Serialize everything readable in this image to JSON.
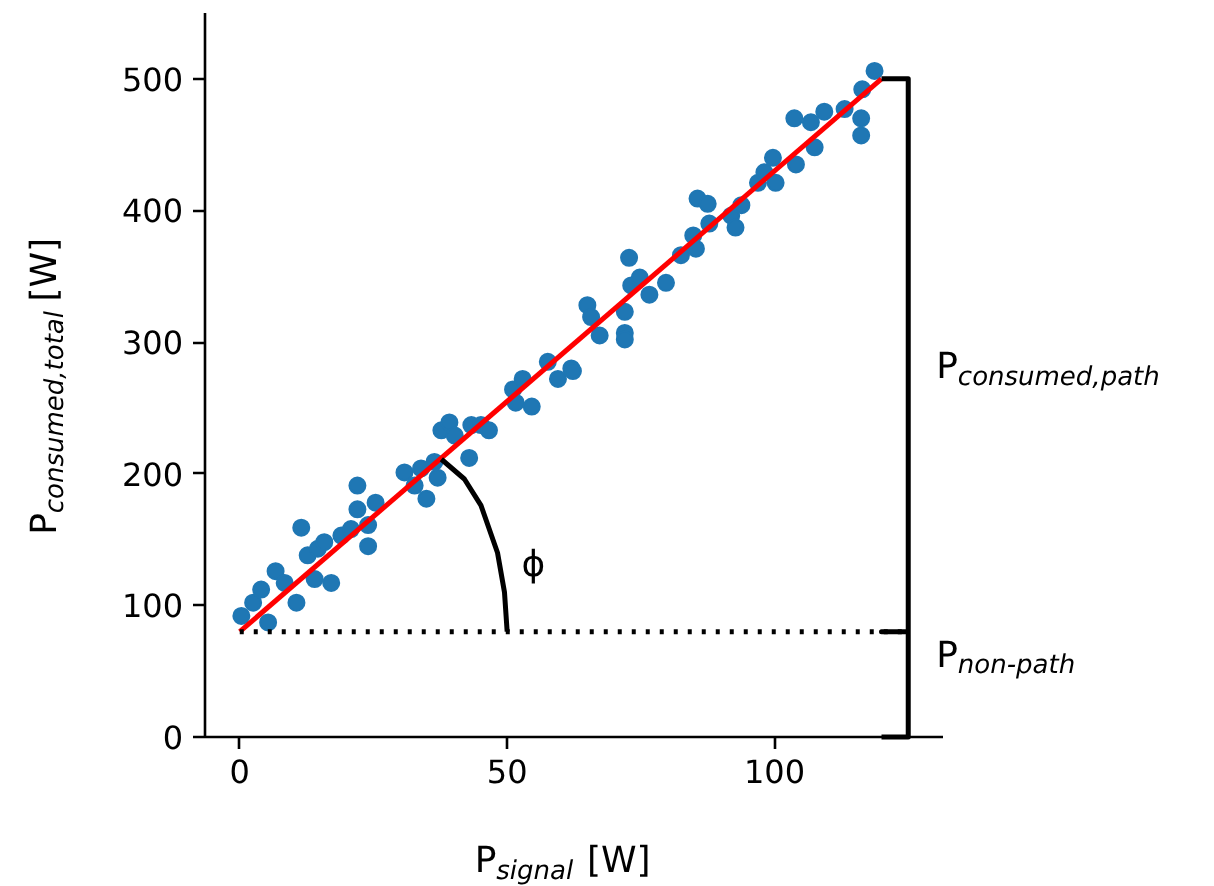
{
  "chart_data": {
    "type": "scatter",
    "xlabel": "P$_{signal}$ [W]",
    "ylabel": "P$_{consumed,total}$ [W]",
    "xlim": [
      -6.5,
      131.5
    ],
    "ylim": [
      0,
      550
    ],
    "xticks": [
      0,
      50,
      100
    ],
    "yticks": [
      0,
      100,
      200,
      300,
      400,
      500
    ],
    "grid": false,
    "marker": "circle",
    "series": [
      {
        "color": "#1f77b4",
        "x": [
          0.3,
          2.5,
          5.3,
          4,
          6.7,
          8.4,
          10.6,
          11.5,
          12.7,
          14.6,
          17.1,
          14,
          15.8,
          19,
          20.8,
          22,
          22,
          24,
          24,
          25.4,
          30.8,
          32.7,
          34.9,
          33.9,
          36.4,
          37,
          37.7,
          39.2,
          40.2,
          42.9,
          43.3,
          45.1,
          46.6,
          51.1,
          51.6,
          54.6,
          52.9,
          57.6,
          59.5,
          62,
          62.3,
          65,
          65.7,
          67.3,
          72,
          72,
          72,
          72.8,
          73.2,
          74.8,
          76.6,
          79.7,
          82.5,
          84.8,
          85.3,
          85.6,
          87.5,
          87.8,
          91.9,
          92.7,
          93.8,
          96.9,
          98.1,
          99.7,
          100.2,
          104,
          103.7,
          107.5,
          106.8,
          116.2,
          116.2,
          109.3,
          113.1,
          116.4,
          118.7
        ],
        "values": [
          92,
          102,
          87,
          112,
          126,
          117,
          102,
          159,
          138,
          143,
          117,
          120,
          148,
          153,
          158,
          191,
          173,
          161,
          145,
          178,
          201,
          191,
          181,
          204,
          209,
          197,
          233,
          239,
          229,
          212,
          237,
          237,
          233,
          264,
          254,
          251,
          272,
          285,
          272,
          280,
          278,
          328,
          319,
          305,
          323,
          307,
          302,
          364,
          343,
          349,
          336,
          345,
          366,
          381,
          371,
          409,
          405,
          390,
          396,
          387,
          404,
          421,
          429,
          440,
          421,
          435,
          470,
          448,
          467,
          457,
          470,
          475,
          477,
          492,
          506
        ]
      },
      {
        "type": "line",
        "marker": "none",
        "color": "#ff0000",
        "x": [
          0,
          120
        ],
        "values": [
          80,
          500
        ]
      },
      {
        "type": "line",
        "marker": "none",
        "color": "#000000",
        "line_style": "dotted",
        "x": [
          0,
          125
        ],
        "values": [
          80,
          80
        ]
      },
      {
        "type": "line",
        "marker": "none",
        "color": "#000000",
        "x": [
          120,
          125,
          125,
          120,
          125,
          125,
          120
        ],
        "values": [
          500,
          500,
          80,
          80,
          80,
          0,
          0
        ]
      },
      {
        "type": "line",
        "marker": "none",
        "color": "#000000",
        "x": [
          37.7,
          42,
          45.1,
          48.2,
          49.5,
          50
        ],
        "values": [
          211,
          196,
          176,
          140,
          110,
          80
        ]
      }
    ],
    "annotations": [
      "ϕ",
      "P$_{consumed,path}$",
      "P$_{non-path}$"
    ]
  }
}
